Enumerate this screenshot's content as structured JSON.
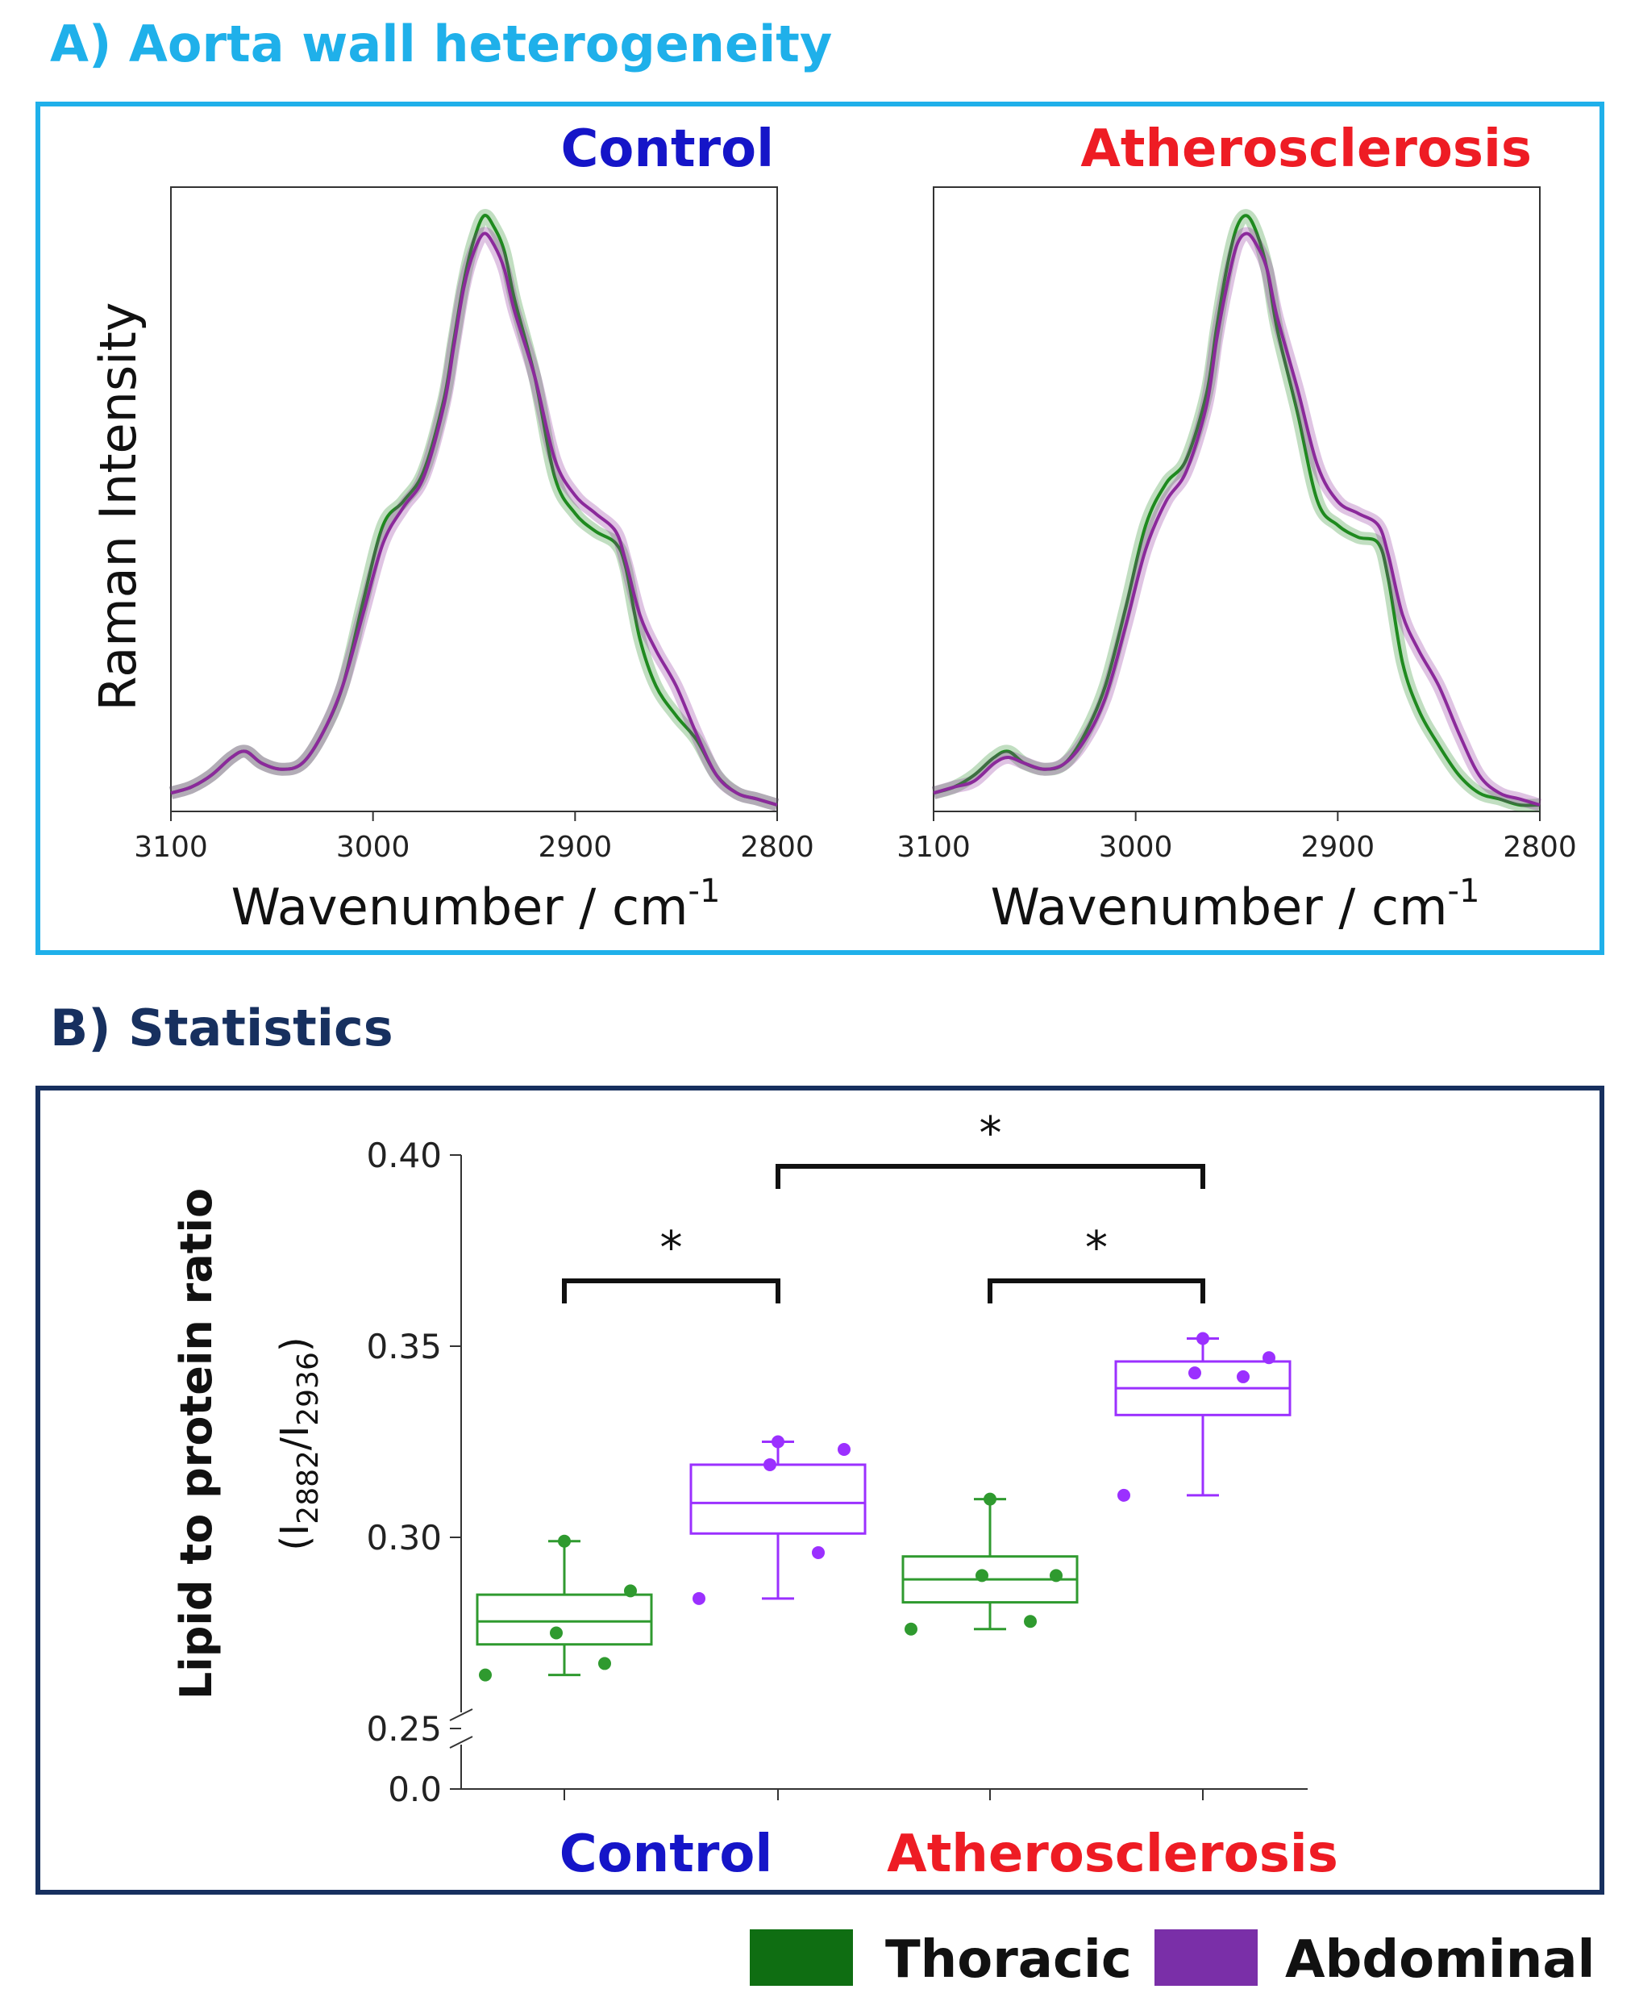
{
  "panel_a": {
    "title": "A)  Aorta wall heterogeneity"
  },
  "panel_b": {
    "title": "B)  Statistics"
  },
  "colors": {
    "thoracic": "#1f8a1f",
    "abdominal": "#8b2a9b",
    "thoracic_box": "#2f9a2f",
    "abdominal_box": "#9b30ff",
    "control": "#1515c8",
    "atherosclerosis": "#ee1c24"
  },
  "chart_data": [
    {
      "type": "line",
      "title": "Control",
      "xlabel": "Wavenumber / cm",
      "xlabel_sup": "-1",
      "ylabel": "Raman Intensity",
      "xlim": [
        3100,
        2800
      ],
      "ylim": [
        0,
        1
      ],
      "x_ticks": [
        "3100",
        "3000",
        "2900",
        "2800"
      ],
      "x": [
        3100,
        3090,
        3080,
        3070,
        3063,
        3055,
        3045,
        3035,
        3025,
        3015,
        3005,
        2995,
        2985,
        2975,
        2965,
        2960,
        2955,
        2950,
        2945,
        2940,
        2935,
        2930,
        2920,
        2910,
        2900,
        2890,
        2880,
        2875,
        2868,
        2860,
        2850,
        2840,
        2830,
        2820,
        2810,
        2800
      ],
      "series": [
        {
          "name": "Thoracic",
          "values": [
            0.02,
            0.03,
            0.05,
            0.08,
            0.09,
            0.07,
            0.06,
            0.07,
            0.12,
            0.2,
            0.34,
            0.47,
            0.51,
            0.56,
            0.68,
            0.78,
            0.88,
            0.95,
            0.99,
            0.97,
            0.93,
            0.85,
            0.72,
            0.55,
            0.49,
            0.46,
            0.44,
            0.4,
            0.28,
            0.2,
            0.15,
            0.11,
            0.05,
            0.02,
            0.01,
            0.0
          ]
        },
        {
          "name": "Abdominal",
          "values": [
            0.02,
            0.03,
            0.05,
            0.08,
            0.09,
            0.07,
            0.06,
            0.07,
            0.12,
            0.2,
            0.32,
            0.44,
            0.5,
            0.55,
            0.67,
            0.77,
            0.87,
            0.93,
            0.96,
            0.94,
            0.9,
            0.83,
            0.72,
            0.58,
            0.52,
            0.49,
            0.46,
            0.41,
            0.32,
            0.26,
            0.2,
            0.12,
            0.05,
            0.02,
            0.01,
            0.0
          ]
        }
      ]
    },
    {
      "type": "line",
      "title": "Atherosclerosis",
      "xlabel": "Wavenumber / cm",
      "xlabel_sup": "-1",
      "xlim": [
        3100,
        2800
      ],
      "ylim": [
        0,
        1
      ],
      "x_ticks": [
        "3100",
        "3000",
        "2900",
        "2800"
      ],
      "x": [
        3100,
        3090,
        3080,
        3070,
        3063,
        3055,
        3045,
        3035,
        3025,
        3015,
        3005,
        2995,
        2985,
        2975,
        2965,
        2960,
        2955,
        2950,
        2945,
        2940,
        2935,
        2930,
        2920,
        2910,
        2900,
        2890,
        2880,
        2875,
        2868,
        2860,
        2850,
        2840,
        2830,
        2820,
        2810,
        2800
      ],
      "series": [
        {
          "name": "Thoracic",
          "values": [
            0.02,
            0.03,
            0.05,
            0.08,
            0.09,
            0.07,
            0.06,
            0.07,
            0.12,
            0.2,
            0.33,
            0.47,
            0.54,
            0.58,
            0.69,
            0.8,
            0.9,
            0.97,
            0.99,
            0.96,
            0.9,
            0.8,
            0.66,
            0.51,
            0.47,
            0.45,
            0.44,
            0.38,
            0.24,
            0.16,
            0.1,
            0.05,
            0.02,
            0.01,
            0.0,
            0.0
          ]
        },
        {
          "name": "Abdominal",
          "values": [
            0.02,
            0.03,
            0.04,
            0.07,
            0.08,
            0.07,
            0.06,
            0.07,
            0.11,
            0.18,
            0.3,
            0.43,
            0.51,
            0.56,
            0.67,
            0.78,
            0.87,
            0.94,
            0.96,
            0.94,
            0.9,
            0.82,
            0.7,
            0.57,
            0.51,
            0.49,
            0.47,
            0.42,
            0.32,
            0.26,
            0.2,
            0.12,
            0.05,
            0.02,
            0.01,
            0.0
          ]
        }
      ]
    },
    {
      "type": "box",
      "ylabel": "Lipid to protein ratio",
      "ylabel2": {
        "open": "(I",
        "sub1": "2882",
        "slash": "/I",
        "sub2": "2936",
        "close": ")"
      },
      "y_ticks": [
        "0.40",
        "0.35",
        "0.30",
        "0.25",
        "0.0"
      ],
      "ylim": [
        0.25,
        0.4
      ],
      "axis_break": true,
      "groups": [
        "Control",
        "Atherosclerosis"
      ],
      "boxes": [
        {
          "group": "Control",
          "series": "Thoracic",
          "min": 0.264,
          "q1": 0.272,
          "median": 0.278,
          "q3": 0.285,
          "max": 0.299,
          "points": [
            0.264,
            0.267,
            0.275,
            0.286,
            0.299
          ]
        },
        {
          "group": "Control",
          "series": "Abdominal",
          "min": 0.284,
          "q1": 0.301,
          "median": 0.309,
          "q3": 0.319,
          "max": 0.325,
          "points": [
            0.284,
            0.296,
            0.319,
            0.323,
            0.325
          ]
        },
        {
          "group": "Atherosclerosis",
          "series": "Thoracic",
          "min": 0.276,
          "q1": 0.283,
          "median": 0.289,
          "q3": 0.295,
          "max": 0.31,
          "points": [
            0.276,
            0.278,
            0.29,
            0.29,
            0.31
          ]
        },
        {
          "group": "Atherosclerosis",
          "series": "Abdominal",
          "min": 0.311,
          "q1": 0.332,
          "median": 0.339,
          "q3": 0.346,
          "max": 0.352,
          "points": [
            0.311,
            0.342,
            0.343,
            0.347,
            0.352
          ]
        }
      ],
      "significance": [
        {
          "from": 0,
          "to": 1,
          "label": "*"
        },
        {
          "from": 2,
          "to": 3,
          "label": "*"
        },
        {
          "from": 1,
          "to": 3,
          "label": "*"
        }
      ],
      "legend": [
        "Thoracic",
        "Abdominal"
      ]
    }
  ]
}
